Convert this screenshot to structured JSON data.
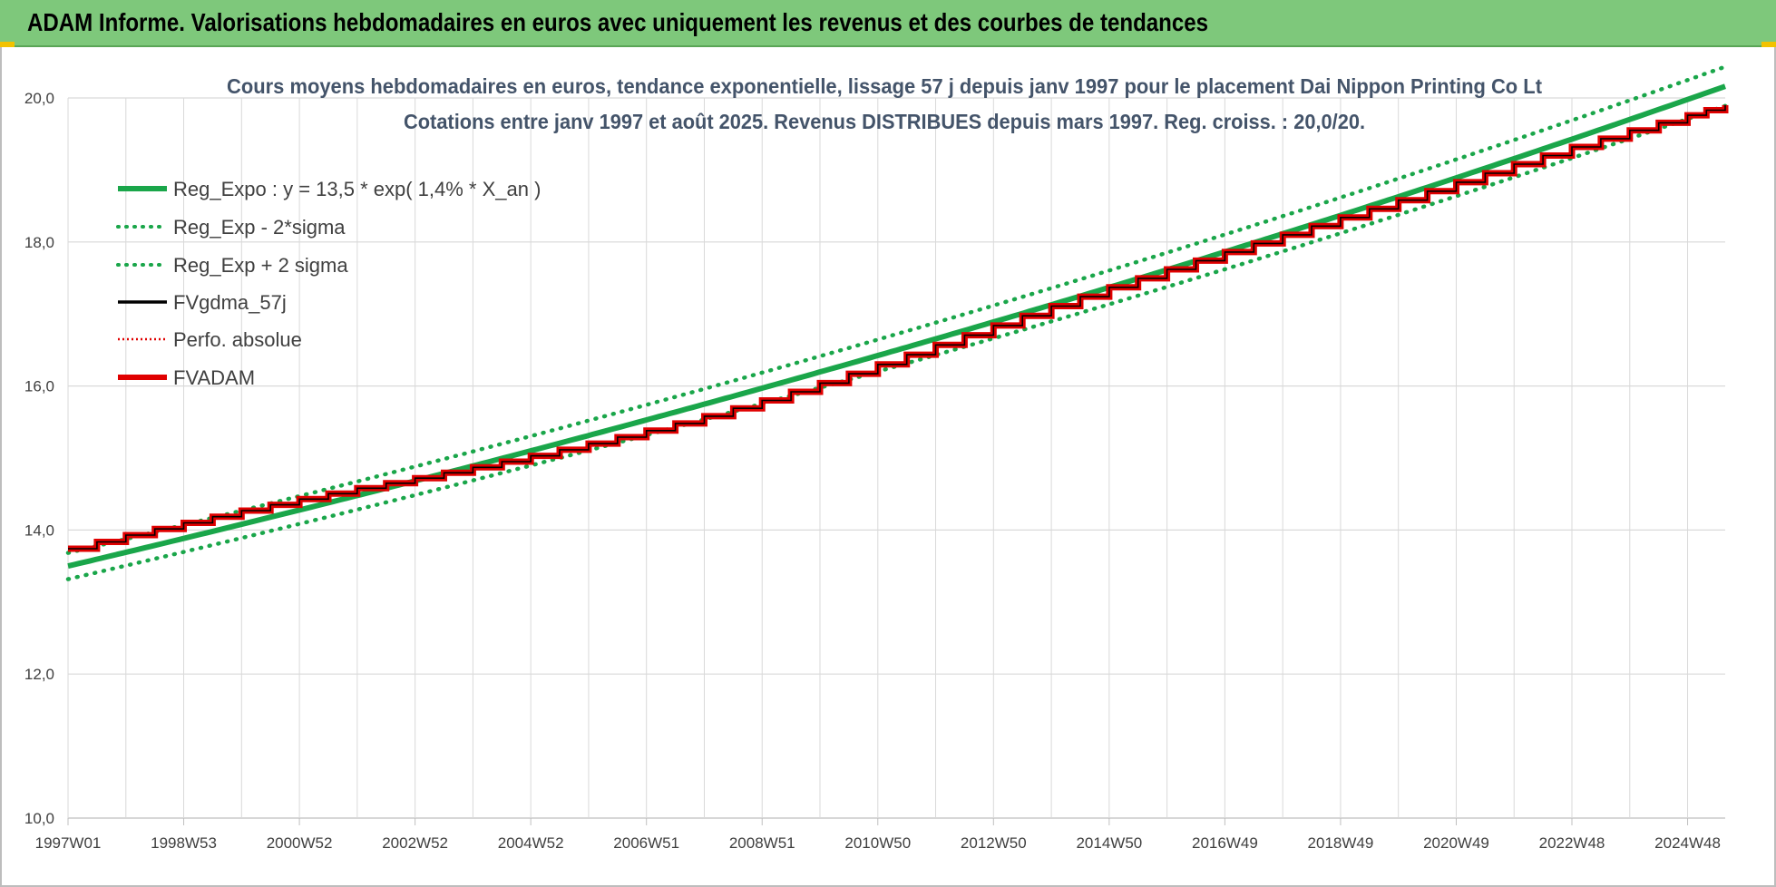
{
  "banner": {
    "title": "ADAM Informe. Valorisations hebdomadaires en euros avec uniquement les revenus et des courbes de tendances"
  },
  "colors": {
    "banner_bg": "#7ec87b",
    "trend_green": "#1aa64a",
    "red": "#e00000",
    "black": "#000000",
    "grid": "#d9d9d9"
  },
  "chart_data": {
    "type": "line",
    "title": [
      "Cours moyens hebdomadaires en euros, tendance exponentielle, lissage 57 j depuis janv 1997 pour le placement Dai Nippon Printing Co Lt",
      "Cotations entre janv 1997 et août 2025.  Revenus DISTRIBUES depuis mars 1997. Reg. croiss. : 20,0/20."
    ],
    "xlabel": "",
    "ylabel": "",
    "ylim": [
      10,
      20
    ],
    "y_ticks": [
      "10,0",
      "12,0",
      "14,0",
      "16,0",
      "18,0",
      "20,0"
    ],
    "x_ticks": [
      "1997W01",
      "1998W53",
      "2000W52",
      "2002W52",
      "2004W52",
      "2006W51",
      "2008W51",
      "2010W50",
      "2012W50",
      "2014W50",
      "2016W49",
      "2018W49",
      "2020W49",
      "2022W48",
      "2024W48"
    ],
    "x_range_years": [
      1997.0,
      2025.65
    ],
    "grid": "on",
    "legend_position": "top-left",
    "regression": {
      "base": 13.5,
      "rate_pct_per_year": 1.4,
      "sigma_band_ratio": 0.0135
    },
    "fvadam_steps": {
      "years": [
        1997.0,
        1998.0,
        1999.0,
        2000.0,
        2001.0,
        2002.0,
        2003.0,
        2004.0,
        2005.0,
        2006.0,
        2007.0,
        2008.0,
        2009.0,
        2010.0,
        2011.0,
        2012.0,
        2013.0,
        2014.0,
        2015.0,
        2016.0,
        2017.0,
        2018.0,
        2019.0,
        2020.0,
        2021.0,
        2022.0,
        2023.0,
        2024.0,
        2025.0,
        2025.65
      ],
      "values": [
        13.74,
        13.93,
        14.1,
        14.27,
        14.43,
        14.58,
        14.72,
        14.87,
        15.03,
        15.2,
        15.38,
        15.58,
        15.8,
        16.04,
        16.3,
        16.57,
        16.84,
        17.11,
        17.37,
        17.62,
        17.86,
        18.1,
        18.34,
        18.58,
        18.83,
        19.08,
        19.32,
        19.55,
        19.76,
        19.9
      ]
    },
    "series": [
      {
        "name": "Reg_Expo : y = 13,5 * exp( 1,4% *  X_an )",
        "color": "#1aa64a",
        "style": "solid-thick"
      },
      {
        "name": "Reg_Exp - 2*sigma",
        "color": "#1aa64a",
        "style": "dotted"
      },
      {
        "name": "Reg_Exp + 2 sigma",
        "color": "#1aa64a",
        "style": "dotted"
      },
      {
        "name": "FVgdma_57j",
        "color": "#000000",
        "style": "solid"
      },
      {
        "name": "Perfo. absolue",
        "color": "#e00000",
        "style": "dotted"
      },
      {
        "name": "FVADAM",
        "color": "#e00000",
        "style": "solid-thick"
      }
    ]
  }
}
